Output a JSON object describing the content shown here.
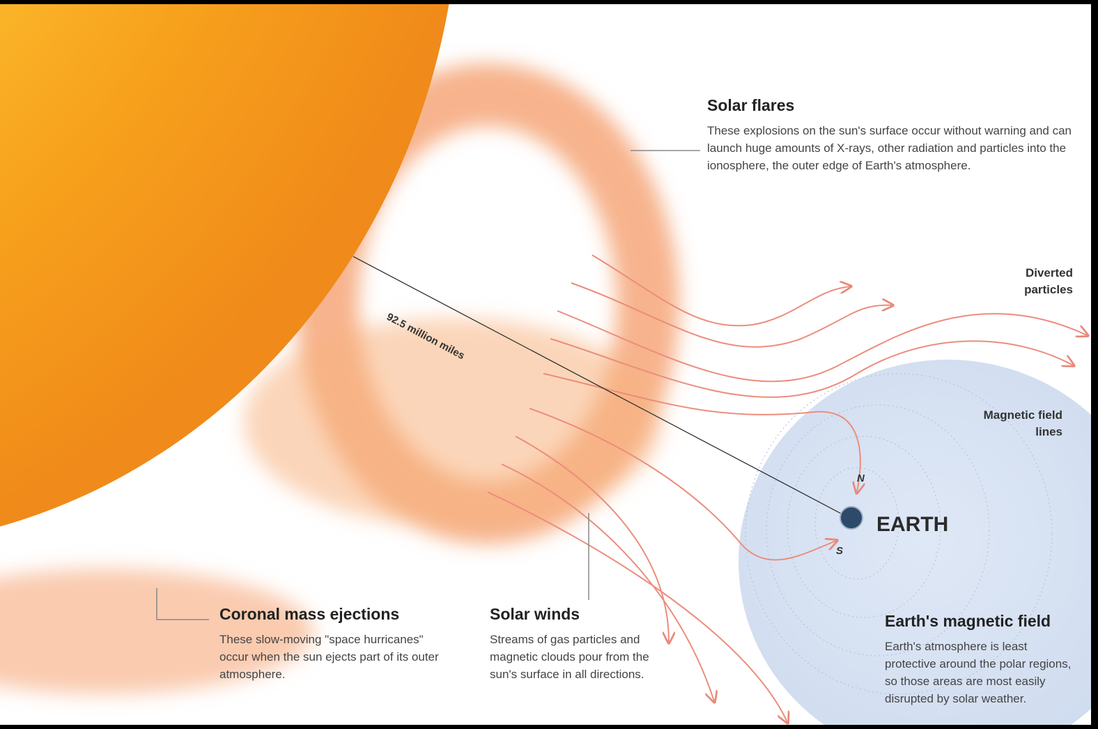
{
  "solar_flares": {
    "title": "Solar flares",
    "text": "These explosions on the sun's surface occur without warning and can launch huge amounts of X-rays, other radiation and particles into the ionosphere, the outer edge of Earth's atmosphere."
  },
  "diverted_particles": "Diverted particles",
  "distance": "92.5 million miles",
  "magnetic_field_lines": "Magnetic field lines",
  "earth": {
    "label": "EARTH",
    "north": "N",
    "south": "S"
  },
  "coronal_mass_ejections": {
    "title": "Coronal mass ejections",
    "text": "These slow-moving \"space hurricanes\" occur when the sun ejects part of its outer atmosphere."
  },
  "solar_winds": {
    "title": "Solar winds",
    "text": "Streams of gas particles and magnetic clouds pour from the sun's surface in all directions."
  },
  "earths_magnetic_field": {
    "title": "Earth's magnetic field",
    "text": "Earth's atmosphere is least protective around the polar regions, so those areas are most easily disrupted by solar weather."
  }
}
